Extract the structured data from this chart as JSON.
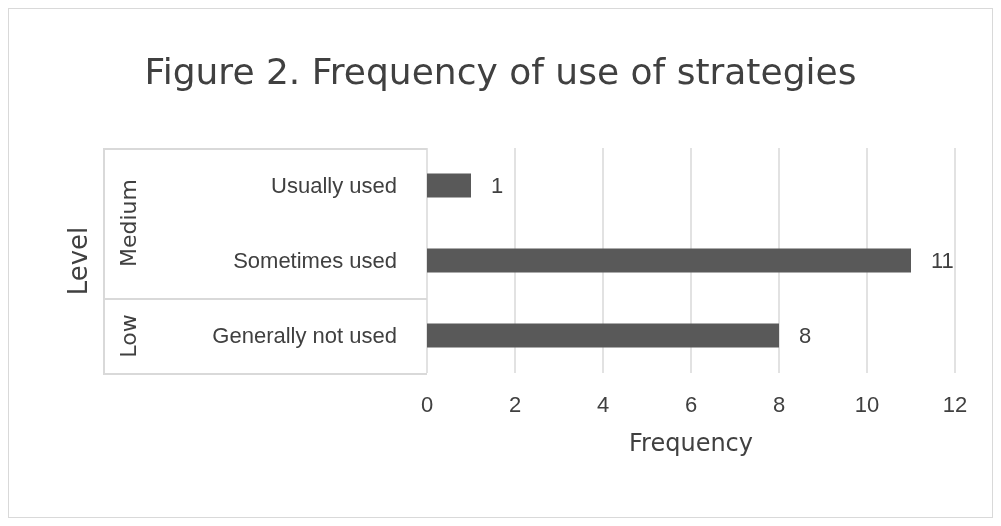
{
  "chart_data": {
    "type": "bar",
    "orientation": "horizontal",
    "title": "Figure 2. Frequency of use of strategies",
    "xlabel": "Frequency",
    "ylabel": "Level",
    "categories": [
      "Usually used",
      "Sometimes used",
      "Generally not used"
    ],
    "values": [
      1,
      11,
      8
    ],
    "color": "#595959",
    "xlim": [
      0,
      12
    ],
    "xticks": [
      0,
      2,
      4,
      6,
      8,
      10,
      12
    ],
    "grid": "x",
    "data_labels": true,
    "annotations": [
      "Medium",
      "Low"
    ]
  }
}
